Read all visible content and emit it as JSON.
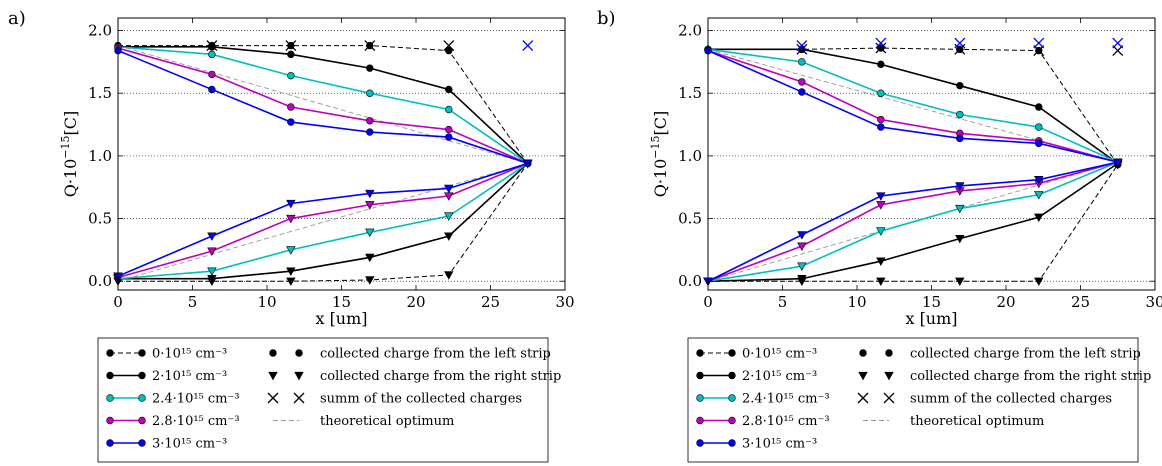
{
  "chart_data": [
    {
      "panel_label": "a)",
      "type": "line",
      "xlabel": "x [um]",
      "ylabel_main": "Q·10",
      "ylabel_exp": "−15",
      "ylabel_unit": "[C]",
      "xlim": [
        0,
        30
      ],
      "ylim": [
        -0.07,
        2.1
      ],
      "xticks": [
        0,
        5,
        10,
        15,
        20,
        25,
        30
      ],
      "yticks": [
        0.0,
        0.5,
        1.0,
        1.5,
        2.0
      ],
      "ytick_labels": [
        "0.0",
        "0.5",
        "1.0",
        "1.5",
        "2.0"
      ],
      "grid": "horizontal dotted",
      "x": [
        0,
        6.3,
        11.6,
        16.9,
        22.2,
        27.5
      ],
      "series": [
        {
          "name": "0·10¹⁵ cm⁻³",
          "color": "#000000",
          "dashed": true,
          "left": [
            1.88,
            1.88,
            1.88,
            1.88,
            1.84,
            0.94
          ],
          "right": [
            0.0,
            0.0,
            0.0,
            0.01,
            0.05,
            0.94
          ]
        },
        {
          "name": "2·10¹⁵ cm⁻³",
          "color": "#000000",
          "dashed": false,
          "left": [
            1.87,
            1.87,
            1.81,
            1.7,
            1.53,
            0.94
          ],
          "right": [
            0.02,
            0.02,
            0.08,
            0.19,
            0.36,
            0.94
          ]
        },
        {
          "name": "2.4·10¹⁵ cm⁻³",
          "color": "#00bfbf",
          "dashed": false,
          "left": [
            1.87,
            1.81,
            1.64,
            1.5,
            1.37,
            0.94
          ],
          "right": [
            0.02,
            0.08,
            0.25,
            0.39,
            0.52,
            0.94
          ]
        },
        {
          "name": "2.8·10¹⁵ cm⁻³",
          "color": "#bf00bf",
          "dashed": false,
          "left": [
            1.86,
            1.65,
            1.39,
            1.28,
            1.21,
            0.94
          ],
          "right": [
            0.03,
            0.24,
            0.5,
            0.61,
            0.68,
            0.94
          ]
        },
        {
          "name": "3·10¹⁵ cm⁻³",
          "color": "#0000ff",
          "dashed": false,
          "left": [
            1.84,
            1.53,
            1.27,
            1.19,
            1.15,
            0.94
          ],
          "right": [
            0.04,
            0.36,
            0.62,
            0.7,
            0.74,
            0.94
          ]
        }
      ],
      "sum_markers": [
        {
          "color": "#000000",
          "x": [
            6.3,
            11.6,
            16.9,
            22.2
          ],
          "y": [
            1.88,
            1.88,
            1.88,
            1.88
          ]
        },
        {
          "color": "#0000ff",
          "x": [
            27.5
          ],
          "y": [
            1.88
          ]
        }
      ],
      "theoretical_optimum": {
        "left": [
          [
            0,
            1.88
          ],
          [
            27.5,
            0.94
          ]
        ],
        "right": [
          [
            0,
            0.0
          ],
          [
            27.5,
            0.94
          ]
        ]
      }
    },
    {
      "panel_label": "b)",
      "type": "line",
      "xlabel": "x [um]",
      "ylabel_main": "Q·10",
      "ylabel_exp": "−15",
      "ylabel_unit": "[C]",
      "xlim": [
        0,
        30
      ],
      "ylim": [
        -0.07,
        2.1
      ],
      "xticks": [
        0,
        5,
        10,
        15,
        20,
        25,
        30
      ],
      "yticks": [
        0.0,
        0.5,
        1.0,
        1.5,
        2.0
      ],
      "ytick_labels": [
        "0.0",
        "0.5",
        "1.0",
        "1.5",
        "2.0"
      ],
      "grid": "horizontal dotted",
      "x": [
        0,
        6.3,
        11.6,
        16.9,
        22.2,
        27.5
      ],
      "series": [
        {
          "name": "0·10¹⁵ cm⁻³",
          "color": "#000000",
          "dashed": true,
          "left": [
            1.85,
            1.85,
            1.86,
            1.85,
            1.84,
            0.93
          ],
          "right": [
            0.0,
            0.0,
            0.0,
            0.0,
            0.0,
            0.93
          ]
        },
        {
          "name": "2·10¹⁵ cm⁻³",
          "color": "#000000",
          "dashed": false,
          "left": [
            1.85,
            1.85,
            1.73,
            1.56,
            1.39,
            0.94
          ],
          "right": [
            0.0,
            0.02,
            0.16,
            0.34,
            0.51,
            0.94
          ]
        },
        {
          "name": "2.4·10¹⁵ cm⁻³",
          "color": "#00bfbf",
          "dashed": false,
          "left": [
            1.85,
            1.75,
            1.5,
            1.33,
            1.23,
            0.95
          ],
          "right": [
            0.0,
            0.12,
            0.4,
            0.58,
            0.69,
            0.95
          ]
        },
        {
          "name": "2.8·10¹⁵ cm⁻³",
          "color": "#bf00bf",
          "dashed": false,
          "left": [
            1.84,
            1.59,
            1.29,
            1.18,
            1.12,
            0.95
          ],
          "right": [
            0.0,
            0.28,
            0.61,
            0.72,
            0.78,
            0.95
          ]
        },
        {
          "name": "3·10¹⁵ cm⁻³",
          "color": "#0000ff",
          "dashed": false,
          "left": [
            1.84,
            1.51,
            1.23,
            1.14,
            1.1,
            0.95
          ],
          "right": [
            0.0,
            0.37,
            0.68,
            0.76,
            0.81,
            0.95
          ]
        }
      ],
      "sum_markers": [
        {
          "color": "#000000",
          "x": [
            6.3,
            11.6,
            16.9,
            22.2,
            27.5
          ],
          "y": [
            1.85,
            1.86,
            1.85,
            1.84,
            1.84
          ]
        },
        {
          "color": "#0000ff",
          "x": [
            6.3,
            11.6,
            16.9,
            22.2,
            27.5
          ],
          "y": [
            1.88,
            1.9,
            1.9,
            1.9,
            1.9
          ]
        }
      ],
      "theoretical_optimum": {
        "left": [
          [
            0,
            1.85
          ],
          [
            27.5,
            0.95
          ]
        ],
        "right": [
          [
            0,
            0.0
          ],
          [
            27.5,
            0.95
          ]
        ]
      }
    }
  ],
  "legend": {
    "series_labels": [
      "0·10¹⁵ cm⁻³",
      "2·10¹⁵ cm⁻³",
      "2.4·10¹⁵ cm⁻³",
      "2.8·10¹⁵ cm⁻³",
      "3·10¹⁵ cm⁻³"
    ],
    "marker_labels": [
      "collected charge from the left strip",
      "collected charge from the right strip",
      "summ of the collected charges",
      "theoretical optimum"
    ]
  }
}
